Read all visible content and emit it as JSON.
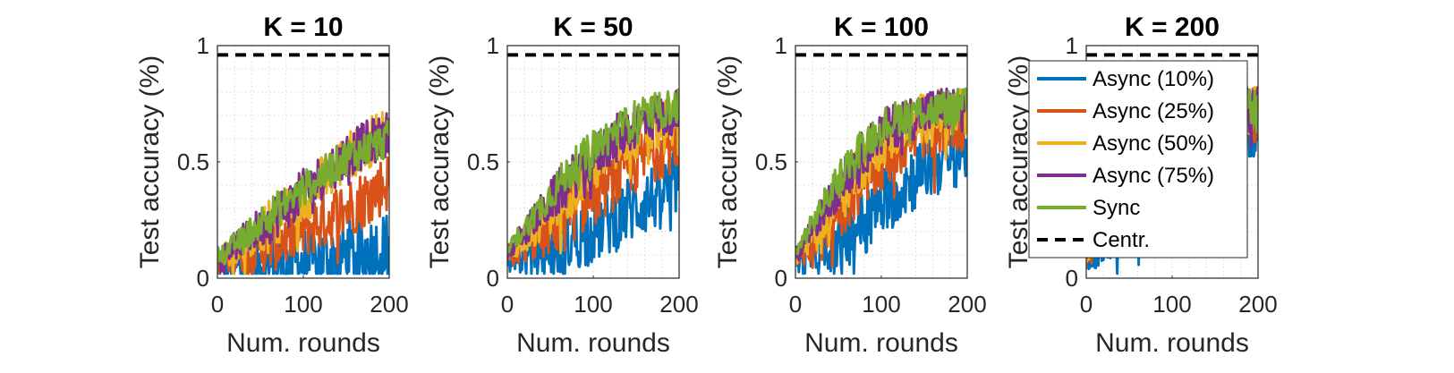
{
  "chart_data": [
    {
      "type": "line",
      "title": "K = 10",
      "xlabel": "Num. rounds",
      "ylabel": "Test accuracy (%)",
      "xlim": [
        0,
        200
      ],
      "ylim": [
        0,
        1
      ],
      "xticks": [
        "0",
        "100",
        "200"
      ],
      "yticks": [
        "0",
        "0.5",
        "1"
      ],
      "grid": true,
      "series": [
        {
          "name": "Async (10%)",
          "x": [
            0,
            25,
            50,
            75,
            100,
            125,
            150,
            175,
            200
          ],
          "values": [
            0.05,
            0.04,
            0.06,
            0.05,
            0.07,
            0.08,
            0.1,
            0.12,
            0.13
          ]
        },
        {
          "name": "Async (25%)",
          "x": [
            0,
            25,
            50,
            75,
            100,
            125,
            150,
            175,
            200
          ],
          "values": [
            0.07,
            0.1,
            0.14,
            0.17,
            0.21,
            0.25,
            0.3,
            0.35,
            0.42
          ]
        },
        {
          "name": "Async (50%)",
          "x": [
            0,
            25,
            50,
            75,
            100,
            125,
            150,
            175,
            200
          ],
          "values": [
            0.08,
            0.14,
            0.2,
            0.27,
            0.34,
            0.43,
            0.52,
            0.58,
            0.64
          ]
        },
        {
          "name": "Async (75%)",
          "x": [
            0,
            25,
            50,
            75,
            100,
            125,
            150,
            175,
            200
          ],
          "values": [
            0.09,
            0.15,
            0.22,
            0.29,
            0.37,
            0.45,
            0.53,
            0.58,
            0.62
          ]
        },
        {
          "name": "Sync",
          "x": [
            0,
            25,
            50,
            75,
            100,
            125,
            150,
            175,
            200
          ],
          "values": [
            0.1,
            0.16,
            0.24,
            0.31,
            0.38,
            0.45,
            0.52,
            0.56,
            0.6
          ]
        },
        {
          "name": "Centr.",
          "x": [
            0,
            200
          ],
          "values": [
            0.96,
            0.96
          ]
        }
      ]
    },
    {
      "type": "line",
      "title": "K = 50",
      "xlabel": "Num. rounds",
      "ylabel": "Test accuracy (%)",
      "xlim": [
        0,
        200
      ],
      "ylim": [
        0,
        1
      ],
      "xticks": [
        "0",
        "100",
        "200"
      ],
      "yticks": [
        "0",
        "0.5",
        "1"
      ],
      "grid": true,
      "series": [
        {
          "name": "Async (10%)",
          "x": [
            0,
            25,
            50,
            75,
            100,
            125,
            150,
            175,
            200
          ],
          "values": [
            0.08,
            0.1,
            0.13,
            0.17,
            0.21,
            0.26,
            0.31,
            0.36,
            0.42
          ]
        },
        {
          "name": "Async (25%)",
          "x": [
            0,
            25,
            50,
            75,
            100,
            125,
            150,
            175,
            200
          ],
          "values": [
            0.09,
            0.15,
            0.21,
            0.28,
            0.35,
            0.42,
            0.49,
            0.55,
            0.6
          ]
        },
        {
          "name": "Async (50%)",
          "x": [
            0,
            25,
            50,
            75,
            100,
            125,
            150,
            175,
            200
          ],
          "values": [
            0.1,
            0.19,
            0.29,
            0.38,
            0.47,
            0.55,
            0.62,
            0.66,
            0.68
          ]
        },
        {
          "name": "Async (75%)",
          "x": [
            0,
            25,
            50,
            75,
            100,
            125,
            150,
            175,
            200
          ],
          "values": [
            0.11,
            0.22,
            0.33,
            0.43,
            0.52,
            0.6,
            0.66,
            0.7,
            0.72
          ]
        },
        {
          "name": "Sync",
          "x": [
            0,
            25,
            50,
            75,
            100,
            125,
            150,
            175,
            200
          ],
          "values": [
            0.12,
            0.24,
            0.36,
            0.47,
            0.56,
            0.63,
            0.69,
            0.72,
            0.74
          ]
        },
        {
          "name": "Centr.",
          "x": [
            0,
            200
          ],
          "values": [
            0.96,
            0.96
          ]
        }
      ]
    },
    {
      "type": "line",
      "title": "K = 100",
      "xlabel": "Num. rounds",
      "ylabel": "Test accuracy (%)",
      "xlim": [
        0,
        200
      ],
      "ylim": [
        0,
        1
      ],
      "xticks": [
        "0",
        "100",
        "200"
      ],
      "yticks": [
        "0",
        "0.5",
        "1"
      ],
      "grid": true,
      "series": [
        {
          "name": "Async (10%)",
          "x": [
            0,
            25,
            50,
            75,
            100,
            125,
            150,
            175,
            200
          ],
          "values": [
            0.07,
            0.11,
            0.17,
            0.24,
            0.32,
            0.4,
            0.47,
            0.52,
            0.56
          ]
        },
        {
          "name": "Async (25%)",
          "x": [
            0,
            25,
            50,
            75,
            100,
            125,
            150,
            175,
            200
          ],
          "values": [
            0.08,
            0.17,
            0.28,
            0.4,
            0.5,
            0.58,
            0.64,
            0.67,
            0.68
          ]
        },
        {
          "name": "Async (50%)",
          "x": [
            0,
            25,
            50,
            75,
            100,
            125,
            150,
            175,
            200
          ],
          "values": [
            0.09,
            0.21,
            0.35,
            0.48,
            0.58,
            0.65,
            0.69,
            0.71,
            0.72
          ]
        },
        {
          "name": "Async (75%)",
          "x": [
            0,
            25,
            50,
            75,
            100,
            125,
            150,
            175,
            200
          ],
          "values": [
            0.1,
            0.24,
            0.39,
            0.52,
            0.62,
            0.68,
            0.71,
            0.73,
            0.73
          ]
        },
        {
          "name": "Sync",
          "x": [
            0,
            25,
            50,
            75,
            100,
            125,
            150,
            175,
            200
          ],
          "values": [
            0.11,
            0.27,
            0.43,
            0.56,
            0.65,
            0.7,
            0.72,
            0.73,
            0.74
          ]
        },
        {
          "name": "Centr.",
          "x": [
            0,
            200
          ],
          "values": [
            0.96,
            0.96
          ]
        }
      ]
    },
    {
      "type": "line",
      "title": "K = 200",
      "xlabel": "Num. rounds",
      "ylabel": "Test accuracy (%)",
      "xlim": [
        0,
        200
      ],
      "ylim": [
        0,
        1
      ],
      "xticks": [
        "0",
        "100",
        "200"
      ],
      "yticks": [
        "0",
        "0.5",
        "1"
      ],
      "grid": true,
      "legend": "top-left",
      "series": [
        {
          "name": "Async (10%)",
          "x": [
            0,
            25,
            50,
            75,
            100,
            125,
            150,
            175,
            200
          ],
          "values": [
            0.08,
            0.16,
            0.28,
            0.4,
            0.5,
            0.57,
            0.62,
            0.64,
            0.65
          ]
        },
        {
          "name": "Async (25%)",
          "x": [
            0,
            25,
            50,
            75,
            100,
            125,
            150,
            175,
            200
          ],
          "values": [
            0.09,
            0.22,
            0.38,
            0.52,
            0.61,
            0.66,
            0.69,
            0.7,
            0.71
          ]
        },
        {
          "name": "Async (50%)",
          "x": [
            0,
            25,
            50,
            75,
            100,
            125,
            150,
            175,
            200
          ],
          "values": [
            0.1,
            0.26,
            0.43,
            0.57,
            0.65,
            0.69,
            0.71,
            0.72,
            0.72
          ]
        },
        {
          "name": "Async (75%)",
          "x": [
            0,
            25,
            50,
            75,
            100,
            125,
            150,
            175,
            200
          ],
          "values": [
            0.11,
            0.29,
            0.47,
            0.6,
            0.67,
            0.71,
            0.72,
            0.73,
            0.73
          ]
        },
        {
          "name": "Sync",
          "x": [
            0,
            25,
            50,
            75,
            100,
            125,
            150,
            175,
            200
          ],
          "values": [
            0.12,
            0.32,
            0.5,
            0.62,
            0.69,
            0.72,
            0.73,
            0.74,
            0.74
          ]
        },
        {
          "name": "Centr.",
          "x": [
            0,
            200
          ],
          "values": [
            0.96,
            0.96
          ]
        }
      ]
    }
  ],
  "colors": {
    "Async (10%)": "#0072BD",
    "Async (25%)": "#D95319",
    "Async (50%)": "#EDB120",
    "Async (75%)": "#7E2F8E",
    "Sync": "#77AC30",
    "Centr.": "#000000",
    "grid": "#d9d9d9",
    "axis": "#262626"
  }
}
